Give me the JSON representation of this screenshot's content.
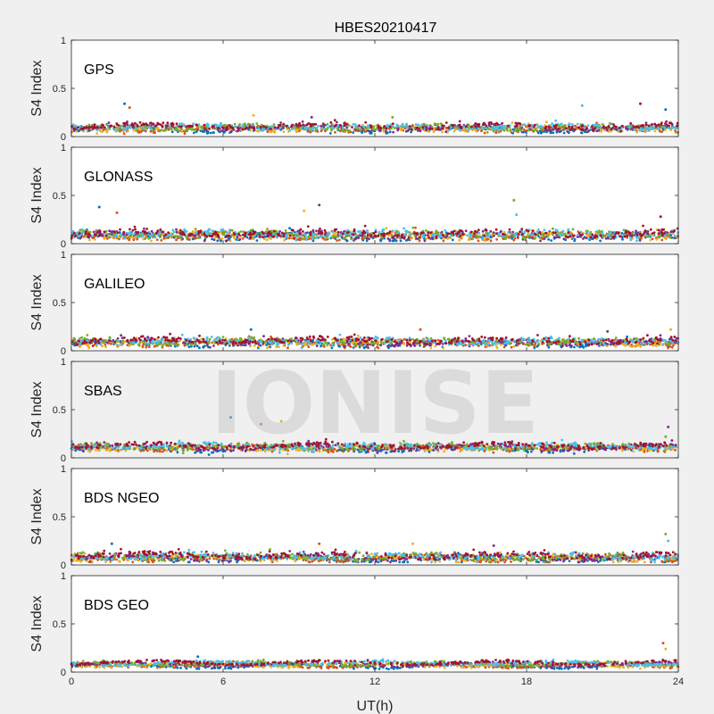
{
  "figure": {
    "title": "HBES20210417",
    "watermark": "IONISE",
    "xlabel": "UT(h)",
    "ylabel": "S4 Index"
  },
  "colors": {
    "background": "#f0f0f0",
    "axes_bg": "#ffffff",
    "watermark_panel_bg": "#f0f0f0",
    "series": [
      "#0072BD",
      "#D95319",
      "#EDB120",
      "#7E2F8E",
      "#77AC30",
      "#4DBEEE",
      "#A2142F"
    ]
  },
  "chart_data": [
    {
      "type": "scatter",
      "label": "GPS",
      "xlim": [
        0,
        24
      ],
      "ylim": [
        0,
        1
      ],
      "xticks": [
        0,
        6,
        12,
        18,
        24
      ],
      "yticks": [
        0,
        0.5,
        1
      ],
      "base": 0.09,
      "spread": 0.04,
      "spikes": [
        [
          2.1,
          0.34
        ],
        [
          2.3,
          0.3
        ],
        [
          7.2,
          0.22
        ],
        [
          9.5,
          0.2
        ],
        [
          12.7,
          0.2
        ],
        [
          20.2,
          0.32
        ],
        [
          22.5,
          0.34
        ],
        [
          23.5,
          0.28
        ]
      ],
      "grid": false
    },
    {
      "type": "scatter",
      "label": "GLONASS",
      "xlim": [
        0,
        24
      ],
      "ylim": [
        0,
        1
      ],
      "xticks": [
        0,
        6,
        12,
        18,
        24
      ],
      "yticks": [
        0,
        0.5,
        1
      ],
      "base": 0.09,
      "spread": 0.06,
      "spikes": [
        [
          1.1,
          0.38
        ],
        [
          1.8,
          0.32
        ],
        [
          9.2,
          0.34
        ],
        [
          9.8,
          0.4
        ],
        [
          17.5,
          0.45
        ],
        [
          17.6,
          0.3
        ],
        [
          23.3,
          0.28
        ]
      ],
      "grid": false
    },
    {
      "type": "scatter",
      "label": "GALILEO",
      "xlim": [
        0,
        24
      ],
      "ylim": [
        0,
        1
      ],
      "xticks": [
        0,
        6,
        12,
        18,
        24
      ],
      "yticks": [
        0,
        0.5,
        1
      ],
      "base": 0.09,
      "spread": 0.05,
      "spikes": [
        [
          7.1,
          0.22
        ],
        [
          13.8,
          0.22
        ],
        [
          23.7,
          0.22
        ],
        [
          21.2,
          0.2
        ]
      ],
      "grid": false
    },
    {
      "type": "scatter",
      "label": "SBAS",
      "xlim": [
        0,
        24
      ],
      "ylim": [
        0,
        1
      ],
      "xticks": [
        0,
        6,
        12,
        18,
        24
      ],
      "yticks": [
        0,
        0.5,
        1
      ],
      "base": 0.11,
      "spread": 0.04,
      "spikes": [
        [
          6.3,
          0.42
        ],
        [
          7.5,
          0.35
        ],
        [
          8.3,
          0.38
        ],
        [
          23.6,
          0.32
        ],
        [
          23.5,
          0.22
        ]
      ],
      "grid": false
    },
    {
      "type": "scatter",
      "label": "BDS NGEO",
      "xlim": [
        0,
        24
      ],
      "ylim": [
        0,
        1
      ],
      "xticks": [
        0,
        6,
        12,
        18,
        24
      ],
      "yticks": [
        0,
        0.5,
        1
      ],
      "base": 0.08,
      "spread": 0.05,
      "spikes": [
        [
          1.6,
          0.22
        ],
        [
          9.8,
          0.22
        ],
        [
          13.5,
          0.22
        ],
        [
          16.7,
          0.2
        ],
        [
          23.5,
          0.32
        ],
        [
          23.6,
          0.25
        ]
      ],
      "grid": false
    },
    {
      "type": "scatter",
      "label": "BDS GEO",
      "xlim": [
        0,
        24
      ],
      "ylim": [
        0,
        1
      ],
      "xticks": [
        0,
        6,
        12,
        18,
        24
      ],
      "yticks": [
        0,
        0.5,
        1
      ],
      "base": 0.08,
      "spread": 0.02,
      "spikes": [
        [
          5.0,
          0.16
        ],
        [
          23.4,
          0.3
        ],
        [
          23.5,
          0.24
        ]
      ],
      "grid": false
    }
  ]
}
